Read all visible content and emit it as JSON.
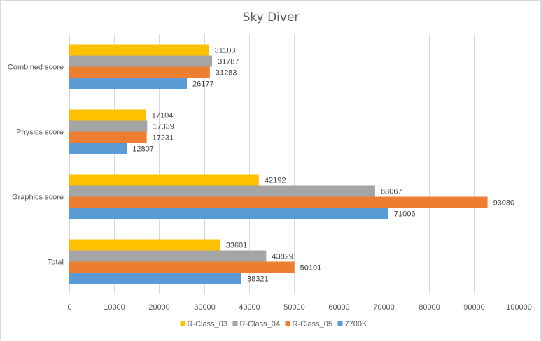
{
  "chart_data": {
    "type": "bar",
    "orientation": "horizontal",
    "title": "Sky Diver",
    "xlabel": "",
    "ylabel": "",
    "categories": [
      "Combined score",
      "Physics score",
      "Graphics score",
      "Total"
    ],
    "series": [
      {
        "name": "R-Class_03",
        "color": "#FFC000",
        "values": [
          31103,
          17104,
          42192,
          33601
        ]
      },
      {
        "name": "R-Class_04",
        "color": "#A5A5A5",
        "values": [
          31787,
          17339,
          68067,
          43829
        ]
      },
      {
        "name": "R-Class_05",
        "color": "#ED7D31",
        "values": [
          31283,
          17231,
          93080,
          50101
        ]
      },
      {
        "name": "7700K",
        "color": "#5B9BD5",
        "values": [
          26177,
          12807,
          71006,
          38321
        ]
      }
    ],
    "xlim": [
      0,
      100000
    ],
    "xticks": [
      "0",
      "10000",
      "20000",
      "30000",
      "40000",
      "50000",
      "60000",
      "70000",
      "80000",
      "90000",
      "100000"
    ],
    "grid": true,
    "data_labels": true,
    "legend_position": "bottom"
  }
}
